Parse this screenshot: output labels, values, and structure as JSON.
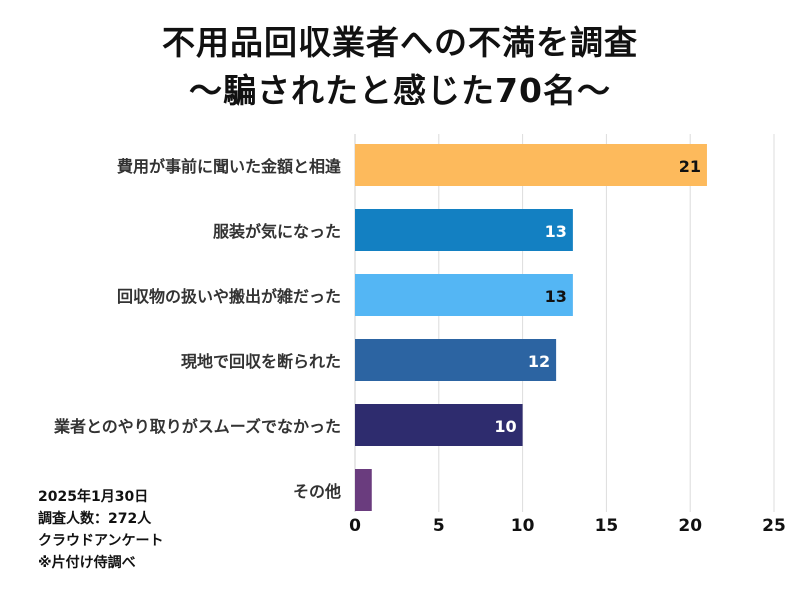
{
  "title_line1": "不用品回収業者への不満を調査",
  "title_line2": "〜騙されたと感じた70名〜",
  "notes": {
    "date": "2025年1月30日",
    "respondents": "調査人数：272人",
    "method": "クラウドアンケート",
    "source": "※片付け侍調べ"
  },
  "chart_data": {
    "type": "bar",
    "orientation": "horizontal",
    "title": "不用品回収業者への不満を調査 〜騙されたと感じた70名〜",
    "categories": [
      "費用が事前に聞いた金額と相違",
      "服装が気になった",
      "回収物の扱いや搬出が雑だった",
      "現地で回収を断られた",
      "業者とのやり取りがスムーズでなかった",
      "その他"
    ],
    "values": [
      21,
      13,
      13,
      12,
      10,
      1
    ],
    "data_labels": [
      "21",
      "13",
      "13",
      "12",
      "10",
      ""
    ],
    "colors": [
      "#FDBA5C",
      "#1380C2",
      "#54B6F4",
      "#2C64A2",
      "#2E2C6E",
      "#6A3C7E"
    ],
    "label_colors": [
      "#111111",
      "#ffffff",
      "#111111",
      "#ffffff",
      "#ffffff",
      "#ffffff"
    ],
    "xlim": [
      0,
      25
    ],
    "xticks": [
      0,
      5,
      10,
      15,
      20,
      25
    ],
    "grid": true,
    "xlabel": "",
    "ylabel": ""
  }
}
